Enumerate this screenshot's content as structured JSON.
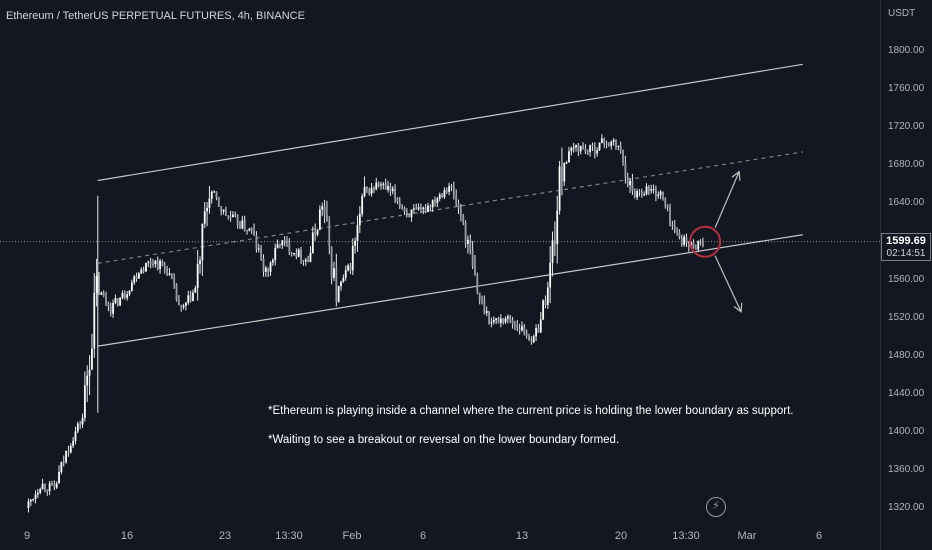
{
  "header": {
    "symbol_title": "Ethereum / TetherUS PERPETUAL FUTURES, 4h, BINANCE"
  },
  "price_axis": {
    "unit": "USDT",
    "ticks": [
      "1800.00",
      "1760.00",
      "1720.00",
      "1680.00",
      "1640.00",
      "1600.00",
      "1560.00",
      "1520.00",
      "1480.00",
      "1440.00",
      "1400.00",
      "1360.00",
      "1320.00"
    ]
  },
  "time_axis": {
    "ticks": [
      "9",
      "16",
      "23",
      "13:30",
      "Feb",
      "6",
      "13",
      "20",
      "13:30",
      "Mar",
      "6"
    ]
  },
  "current_price": {
    "value": "1599.69",
    "timer": "02:14:51"
  },
  "annotations": {
    "note1": "*Ethereum is playing inside a channel where the current price is holding the lower boundary as support.",
    "note2": "*Waiting to see a breakout or reversal on the lower boundary formed."
  },
  "chart_data": {
    "type": "candlestick",
    "title": "Ethereum / TetherUS PERPETUAL FUTURES, 4h, BINANCE",
    "ylabel": "USDT",
    "ylim": [
      1310,
      1850
    ],
    "y_ticks": [
      1320,
      1360,
      1400,
      1440,
      1480,
      1520,
      1560,
      1600,
      1640,
      1680,
      1720,
      1760,
      1800
    ],
    "x_ticks": [
      "9",
      "16",
      "23",
      "13:30",
      "Feb",
      "6",
      "13",
      "20",
      "13:30",
      "Mar",
      "6"
    ],
    "grid": false,
    "current_price": 1599.69,
    "price_path": [
      {
        "x": "Jan 9",
        "y": 1320
      },
      {
        "x": "Jan 10",
        "y": 1345
      },
      {
        "x": "Jan 11",
        "y": 1340
      },
      {
        "x": "Jan 12",
        "y": 1385
      },
      {
        "x": "Jan 13",
        "y": 1415
      },
      {
        "x": "Jan 14",
        "y": 1550
      },
      {
        "x": "Jan 15",
        "y": 1530
      },
      {
        "x": "Jan 16",
        "y": 1545
      },
      {
        "x": "Jan 17",
        "y": 1570
      },
      {
        "x": "Jan 18",
        "y": 1580
      },
      {
        "x": "Jan 19",
        "y": 1570
      },
      {
        "x": "Jan 20",
        "y": 1525
      },
      {
        "x": "Jan 21",
        "y": 1550
      },
      {
        "x": "Jan 22",
        "y": 1655
      },
      {
        "x": "Jan 23",
        "y": 1630
      },
      {
        "x": "Jan 24",
        "y": 1620
      },
      {
        "x": "Jan 25",
        "y": 1610
      },
      {
        "x": "Jan 26",
        "y": 1565
      },
      {
        "x": "Jan 27",
        "y": 1600
      },
      {
        "x": "Jan 28",
        "y": 1590
      },
      {
        "x": "Jan 29",
        "y": 1580
      },
      {
        "x": "Jan 30",
        "y": 1640
      },
      {
        "x": "Jan 31",
        "y": 1545
      },
      {
        "x": "Feb 1",
        "y": 1575
      },
      {
        "x": "Feb 2",
        "y": 1650
      },
      {
        "x": "Feb 3",
        "y": 1660
      },
      {
        "x": "Feb 4",
        "y": 1650
      },
      {
        "x": "Feb 5",
        "y": 1630
      },
      {
        "x": "Feb 6",
        "y": 1630
      },
      {
        "x": "Feb 7",
        "y": 1645
      },
      {
        "x": "Feb 8",
        "y": 1660
      },
      {
        "x": "Feb 9",
        "y": 1620
      },
      {
        "x": "Feb 10",
        "y": 1545
      },
      {
        "x": "Feb 11",
        "y": 1515
      },
      {
        "x": "Feb 12",
        "y": 1520
      },
      {
        "x": "Feb 13",
        "y": 1510
      },
      {
        "x": "Feb 14",
        "y": 1495
      },
      {
        "x": "Feb 15",
        "y": 1550
      },
      {
        "x": "Feb 16",
        "y": 1680
      },
      {
        "x": "Feb 17",
        "y": 1700
      },
      {
        "x": "Feb 18",
        "y": 1695
      },
      {
        "x": "Feb 19",
        "y": 1705
      },
      {
        "x": "Feb 20",
        "y": 1700
      },
      {
        "x": "Feb 21",
        "y": 1650
      },
      {
        "x": "Feb 22",
        "y": 1655
      },
      {
        "x": "Feb 23",
        "y": 1650
      },
      {
        "x": "Feb 24",
        "y": 1610
      },
      {
        "x": "Feb 25",
        "y": 1595
      },
      {
        "x": "Feb 26",
        "y": 1599.69
      }
    ],
    "channel": {
      "upper": [
        {
          "x": "Jan 14",
          "y": 1664
        },
        {
          "x": "Mar 5",
          "y": 1786
        }
      ],
      "midline": [
        {
          "x": "Jan 14",
          "y": 1577
        },
        {
          "x": "Mar 5",
          "y": 1694
        }
      ],
      "lower": [
        {
          "x": "Jan 14",
          "y": 1490
        },
        {
          "x": "Mar 5",
          "y": 1607
        }
      ]
    },
    "projections": [
      "up",
      "down"
    ]
  },
  "colors": {
    "background": "#131722",
    "candles": "#e8e8e8",
    "channel_lines": "#c8c8c8",
    "marker_circle": "#b5303f",
    "arrows": "#c0c0c0",
    "text": "#d1d4dc"
  }
}
